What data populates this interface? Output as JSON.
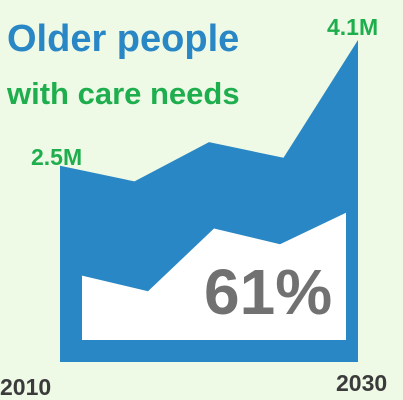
{
  "title_line1": "Older people",
  "title_line2": "with care needs",
  "colors": {
    "background": "#eefae6",
    "area": "#2a87c5",
    "inner_area": "#ffffff",
    "title": "#2a87c5",
    "subtitle": "#1fae4d",
    "value_labels": "#1fae4d",
    "percent": "#717171",
    "axis_labels": "#3b3b3b"
  },
  "chart_data": {
    "type": "area",
    "x_labels": [
      "2010",
      "2030"
    ],
    "series": [
      {
        "values": [
          2.5,
          2.3,
          2.8,
          2.6,
          4.1
        ]
      },
      {
        "values": [
          1.1,
          0.9,
          1.7,
          1.5,
          1.9
        ]
      }
    ],
    "annotations": {
      "start_value": "2.5M",
      "end_value": "4.1M",
      "percent": "61%"
    },
    "ylim": [
      0,
      4.1
    ]
  }
}
